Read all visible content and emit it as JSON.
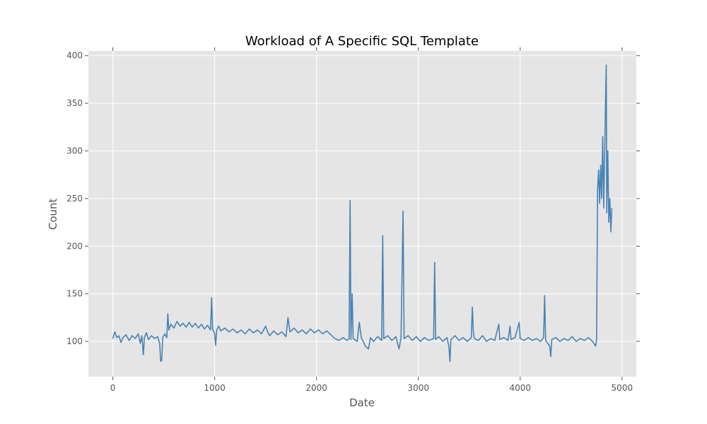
{
  "chart_data": {
    "type": "line",
    "title": "Workload of A Specific SQL Template",
    "xlabel": "Date",
    "ylabel": "Count",
    "xlim": [
      -240,
      5140
    ],
    "ylim": [
      63,
      405
    ],
    "xticks": [
      0,
      1000,
      2000,
      3000,
      4000,
      5000
    ],
    "yticks": [
      100,
      150,
      200,
      250,
      300,
      350,
      400
    ],
    "grid": true,
    "legend": "none",
    "colors": {
      "line": "#4682b4",
      "plot_bg": "#e5e5e5",
      "grid": "#ffffff"
    },
    "series": [
      {
        "points": [
          [
            0,
            103
          ],
          [
            20,
            110
          ],
          [
            40,
            104
          ],
          [
            60,
            106
          ],
          [
            80,
            99
          ],
          [
            100,
            104
          ],
          [
            130,
            107
          ],
          [
            160,
            101
          ],
          [
            190,
            106
          ],
          [
            220,
            103
          ],
          [
            250,
            108
          ],
          [
            270,
            98
          ],
          [
            285,
            106
          ],
          [
            300,
            86
          ],
          [
            310,
            104
          ],
          [
            330,
            109
          ],
          [
            350,
            102
          ],
          [
            380,
            106
          ],
          [
            410,
            103
          ],
          [
            440,
            105
          ],
          [
            460,
            98
          ],
          [
            470,
            79
          ],
          [
            480,
            80
          ],
          [
            490,
            104
          ],
          [
            510,
            108
          ],
          [
            530,
            104
          ],
          [
            540,
            129
          ],
          [
            550,
            112
          ],
          [
            570,
            118
          ],
          [
            600,
            114
          ],
          [
            630,
            121
          ],
          [
            660,
            116
          ],
          [
            690,
            119
          ],
          [
            720,
            115
          ],
          [
            750,
            120
          ],
          [
            780,
            115
          ],
          [
            810,
            119
          ],
          [
            840,
            114
          ],
          [
            870,
            118
          ],
          [
            900,
            113
          ],
          [
            930,
            117
          ],
          [
            960,
            112
          ],
          [
            970,
            146
          ],
          [
            980,
            113
          ],
          [
            1000,
            108
          ],
          [
            1010,
            96
          ],
          [
            1020,
            112
          ],
          [
            1040,
            116
          ],
          [
            1060,
            111
          ],
          [
            1100,
            114
          ],
          [
            1140,
            110
          ],
          [
            1180,
            113
          ],
          [
            1220,
            109
          ],
          [
            1260,
            112
          ],
          [
            1300,
            108
          ],
          [
            1340,
            113
          ],
          [
            1380,
            109
          ],
          [
            1420,
            112
          ],
          [
            1460,
            108
          ],
          [
            1500,
            116
          ],
          [
            1520,
            110
          ],
          [
            1540,
            106
          ],
          [
            1580,
            111
          ],
          [
            1620,
            107
          ],
          [
            1660,
            110
          ],
          [
            1700,
            105
          ],
          [
            1720,
            125
          ],
          [
            1740,
            110
          ],
          [
            1780,
            114
          ],
          [
            1820,
            109
          ],
          [
            1860,
            112
          ],
          [
            1900,
            108
          ],
          [
            1940,
            113
          ],
          [
            1980,
            109
          ],
          [
            2020,
            112
          ],
          [
            2060,
            108
          ],
          [
            2100,
            111
          ],
          [
            2140,
            107
          ],
          [
            2180,
            103
          ],
          [
            2220,
            101
          ],
          [
            2260,
            104
          ],
          [
            2300,
            101
          ],
          [
            2320,
            103
          ],
          [
            2330,
            248
          ],
          [
            2338,
            102
          ],
          [
            2350,
            150
          ],
          [
            2360,
            103
          ],
          [
            2400,
            100
          ],
          [
            2420,
            120
          ],
          [
            2440,
            104
          ],
          [
            2480,
            95
          ],
          [
            2510,
            92
          ],
          [
            2530,
            104
          ],
          [
            2560,
            100
          ],
          [
            2600,
            105
          ],
          [
            2640,
            101
          ],
          [
            2650,
            211
          ],
          [
            2660,
            103
          ],
          [
            2700,
            106
          ],
          [
            2740,
            101
          ],
          [
            2780,
            105
          ],
          [
            2810,
            92
          ],
          [
            2830,
            104
          ],
          [
            2850,
            237
          ],
          [
            2860,
            103
          ],
          [
            2900,
            106
          ],
          [
            2940,
            101
          ],
          [
            2980,
            105
          ],
          [
            3020,
            100
          ],
          [
            3060,
            104
          ],
          [
            3100,
            101
          ],
          [
            3150,
            103
          ],
          [
            3160,
            183
          ],
          [
            3170,
            102
          ],
          [
            3200,
            105
          ],
          [
            3240,
            100
          ],
          [
            3280,
            104
          ],
          [
            3300,
            95
          ],
          [
            3310,
            79
          ],
          [
            3320,
            102
          ],
          [
            3360,
            106
          ],
          [
            3400,
            101
          ],
          [
            3440,
            104
          ],
          [
            3480,
            100
          ],
          [
            3520,
            104
          ],
          [
            3530,
            136
          ],
          [
            3540,
            110
          ],
          [
            3550,
            103
          ],
          [
            3590,
            101
          ],
          [
            3630,
            106
          ],
          [
            3670,
            100
          ],
          [
            3710,
            103
          ],
          [
            3750,
            101
          ],
          [
            3790,
            118
          ],
          [
            3800,
            102
          ],
          [
            3840,
            104
          ],
          [
            3880,
            101
          ],
          [
            3900,
            116
          ],
          [
            3910,
            102
          ],
          [
            3950,
            104
          ],
          [
            3990,
            120
          ],
          [
            4000,
            103
          ],
          [
            4040,
            101
          ],
          [
            4080,
            104
          ],
          [
            4120,
            101
          ],
          [
            4160,
            103
          ],
          [
            4200,
            100
          ],
          [
            4230,
            104
          ],
          [
            4240,
            148
          ],
          [
            4250,
            101
          ],
          [
            4290,
            95
          ],
          [
            4300,
            84
          ],
          [
            4310,
            102
          ],
          [
            4350,
            104
          ],
          [
            4390,
            100
          ],
          [
            4430,
            103
          ],
          [
            4470,
            101
          ],
          [
            4510,
            105
          ],
          [
            4550,
            100
          ],
          [
            4590,
            103
          ],
          [
            4630,
            101
          ],
          [
            4670,
            104
          ],
          [
            4710,
            100
          ],
          [
            4740,
            95
          ],
          [
            4750,
            102
          ],
          [
            4760,
            260
          ],
          [
            4770,
            280
          ],
          [
            4780,
            245
          ],
          [
            4790,
            285
          ],
          [
            4800,
            250
          ],
          [
            4810,
            315
          ],
          [
            4820,
            240
          ],
          [
            4830,
            300
          ],
          [
            4840,
            365
          ],
          [
            4845,
            390
          ],
          [
            4850,
            235
          ],
          [
            4860,
            300
          ],
          [
            4870,
            225
          ],
          [
            4880,
            250
          ],
          [
            4890,
            215
          ],
          [
            4900,
            240
          ]
        ]
      }
    ]
  }
}
